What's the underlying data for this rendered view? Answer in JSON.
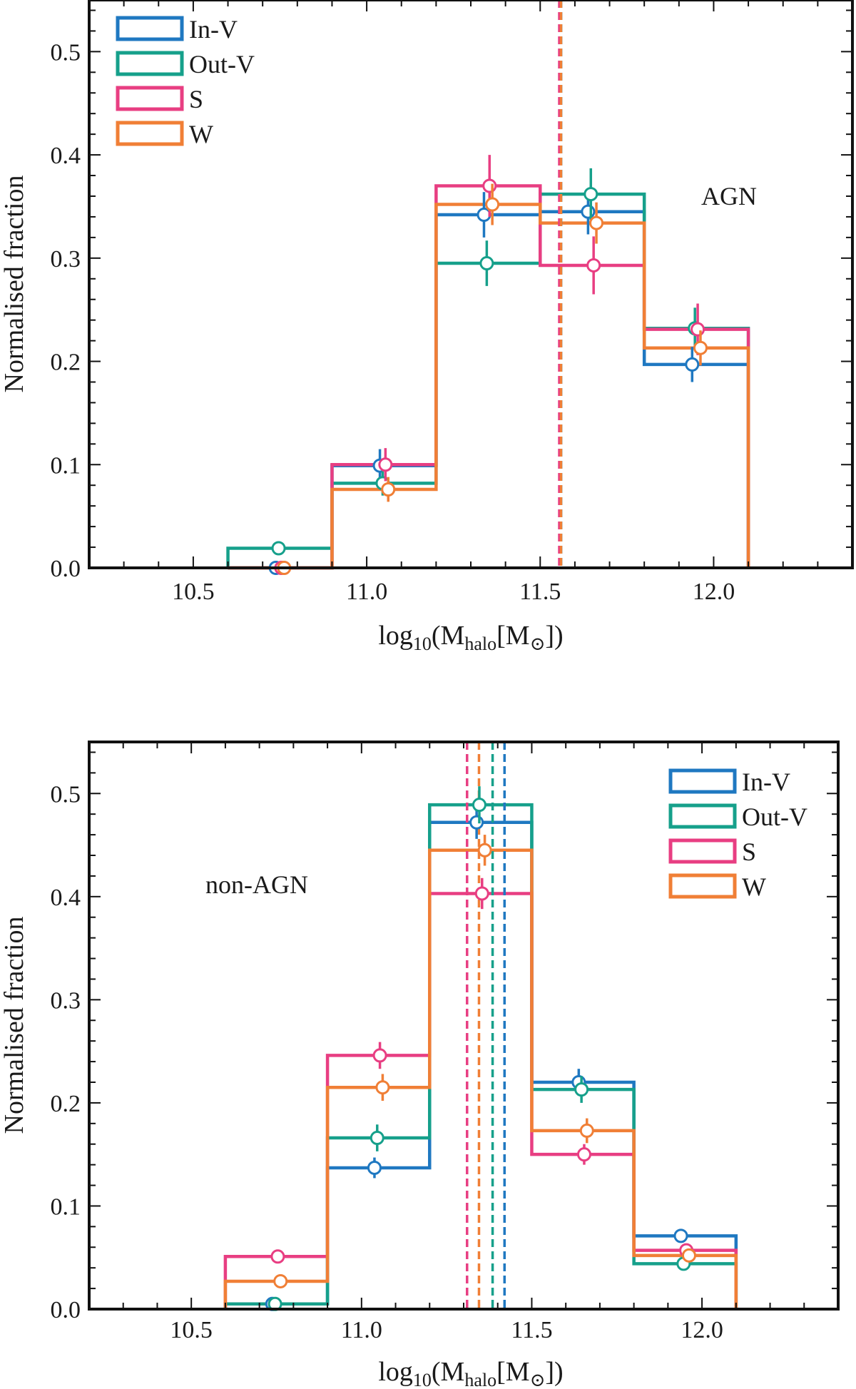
{
  "chart_data": [
    {
      "type": "histogram",
      "panel": "top",
      "annotation": "AGN",
      "xlabel": "log10(Mhalo[M⊙])",
      "xlabel_parts": {
        "log": "log",
        "log_sub": "10",
        "open": "(M",
        "sub": "halo",
        "mid": "[M",
        "sun": "⊙",
        "close": "])"
      },
      "ylabel": "Normalised fraction",
      "xlim": [
        10.2,
        12.4
      ],
      "ylim": [
        0.0,
        0.55
      ],
      "xticks": [
        10.5,
        11.0,
        11.5,
        12.0
      ],
      "xtick_labels": [
        "10.5",
        "11.0",
        "11.5",
        "12.0"
      ],
      "yticks": [
        0.0,
        0.1,
        0.2,
        0.3,
        0.4,
        0.5
      ],
      "ytick_labels": [
        "0.0",
        "0.1",
        "0.2",
        "0.3",
        "0.4",
        "0.5"
      ],
      "bin_edges": [
        10.6,
        10.9,
        11.2,
        11.5,
        11.8,
        12.1
      ],
      "legend_position": "top-left",
      "series": [
        {
          "name": "In-V",
          "color": "#1f78c1",
          "values": [
            0.0,
            0.099,
            0.342,
            0.345,
            0.197
          ],
          "errors": [
            0.0,
            0.016,
            0.022,
            0.022,
            0.017
          ],
          "median": 11.56
        },
        {
          "name": "Out-V",
          "color": "#16a08b",
          "values": [
            0.019,
            0.082,
            0.295,
            0.362,
            0.232
          ],
          "errors": [
            0.006,
            0.012,
            0.022,
            0.025,
            0.02
          ],
          "median": 11.56
        },
        {
          "name": "S",
          "color": "#e83e82",
          "values": [
            0.0,
            0.1,
            0.37,
            0.293,
            0.231
          ],
          "errors": [
            0.0,
            0.016,
            0.03,
            0.028,
            0.025
          ],
          "median": 11.555
        },
        {
          "name": "W",
          "color": "#f07f36",
          "values": [
            0.0,
            0.076,
            0.352,
            0.334,
            0.213
          ],
          "errors": [
            0.0,
            0.012,
            0.02,
            0.02,
            0.017
          ],
          "median": 11.56
        }
      ]
    },
    {
      "type": "histogram",
      "panel": "bottom",
      "annotation": "non-AGN",
      "xlabel": "log10(Mhalo[M⊙])",
      "xlabel_parts": {
        "log": "log",
        "log_sub": "10",
        "open": "(M",
        "sub": "halo",
        "mid": "[M",
        "sun": "⊙",
        "close": "])"
      },
      "ylabel": "Normalised fraction",
      "xlim": [
        10.2,
        12.4
      ],
      "ylim": [
        0.0,
        0.55
      ],
      "xticks": [
        10.5,
        11.0,
        11.5,
        12.0
      ],
      "xtick_labels": [
        "10.5",
        "11.0",
        "11.5",
        "12.0"
      ],
      "yticks": [
        0.0,
        0.1,
        0.2,
        0.3,
        0.4,
        0.5
      ],
      "ytick_labels": [
        "0.0",
        "0.1",
        "0.2",
        "0.3",
        "0.4",
        "0.5"
      ],
      "bin_edges": [
        10.6,
        10.9,
        11.2,
        11.5,
        11.8,
        12.1
      ],
      "legend_position": "top-right",
      "series": [
        {
          "name": "In-V",
          "color": "#1f78c1",
          "values": [
            0.005,
            0.137,
            0.472,
            0.22,
            0.071
          ],
          "errors": [
            0.002,
            0.01,
            0.016,
            0.013,
            0.006
          ],
          "median": 11.42
        },
        {
          "name": "Out-V",
          "color": "#16a08b",
          "values": [
            0.005,
            0.166,
            0.489,
            0.213,
            0.044
          ],
          "errors": [
            0.002,
            0.013,
            0.018,
            0.013,
            0.005
          ],
          "median": 11.385
        },
        {
          "name": "S",
          "color": "#e83e82",
          "values": [
            0.051,
            0.246,
            0.403,
            0.15,
            0.057
          ],
          "errors": [
            0.006,
            0.013,
            0.015,
            0.01,
            0.006
          ],
          "median": 11.31
        },
        {
          "name": "W",
          "color": "#f07f36",
          "values": [
            0.027,
            0.215,
            0.445,
            0.173,
            0.052
          ],
          "errors": [
            0.004,
            0.013,
            0.015,
            0.012,
            0.005
          ],
          "median": 11.345
        }
      ]
    }
  ]
}
